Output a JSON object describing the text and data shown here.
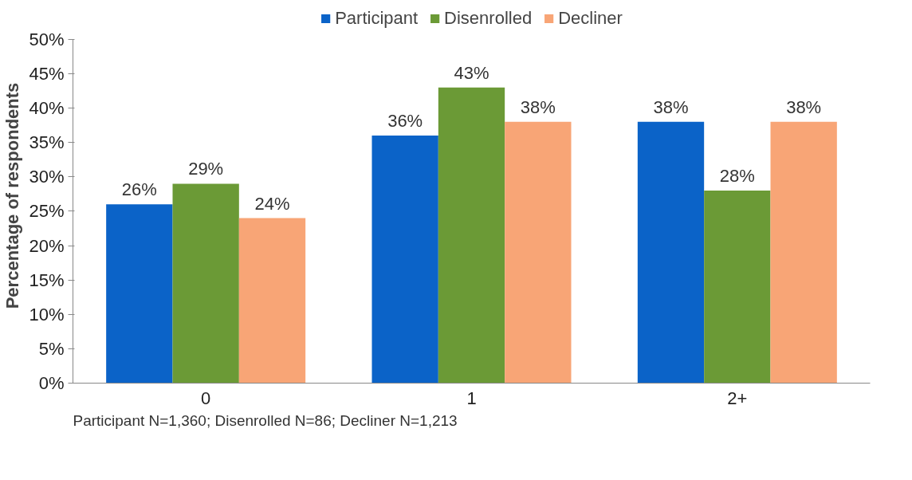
{
  "chart_data": {
    "type": "bar",
    "ylabel": "Percentage of respondents",
    "categories": [
      "0",
      "1",
      "2+"
    ],
    "series": [
      {
        "name": "Participant",
        "color": "#0b63c8",
        "values": [
          26,
          36,
          38
        ],
        "value_labels": [
          "26%",
          "36%",
          "38%"
        ]
      },
      {
        "name": "Disenrolled",
        "color": "#6b9a36",
        "values": [
          29,
          43,
          28
        ],
        "value_labels": [
          "29%",
          "43%",
          "28%"
        ]
      },
      {
        "name": "Decliner",
        "color": "#f8a576",
        "values": [
          24,
          38,
          38
        ],
        "value_labels": [
          "24%",
          "38%",
          "38%"
        ]
      }
    ],
    "ylim": [
      0,
      50
    ],
    "yticks": [
      {
        "value": 0,
        "label": "0%"
      },
      {
        "value": 5,
        "label": "5%"
      },
      {
        "value": 10,
        "label": "10%"
      },
      {
        "value": 15,
        "label": "15%"
      },
      {
        "value": 20,
        "label": "20%"
      },
      {
        "value": 25,
        "label": "25%"
      },
      {
        "value": 30,
        "label": "30%"
      },
      {
        "value": 35,
        "label": "35%"
      },
      {
        "value": 40,
        "label": "40%"
      },
      {
        "value": 45,
        "label": "45%"
      },
      {
        "value": 50,
        "label": "50%"
      }
    ],
    "grid": false,
    "legend": "top",
    "annotations": [
      "Participant N=1,360; Disenrolled N=86; Decliner N=1,213"
    ]
  }
}
